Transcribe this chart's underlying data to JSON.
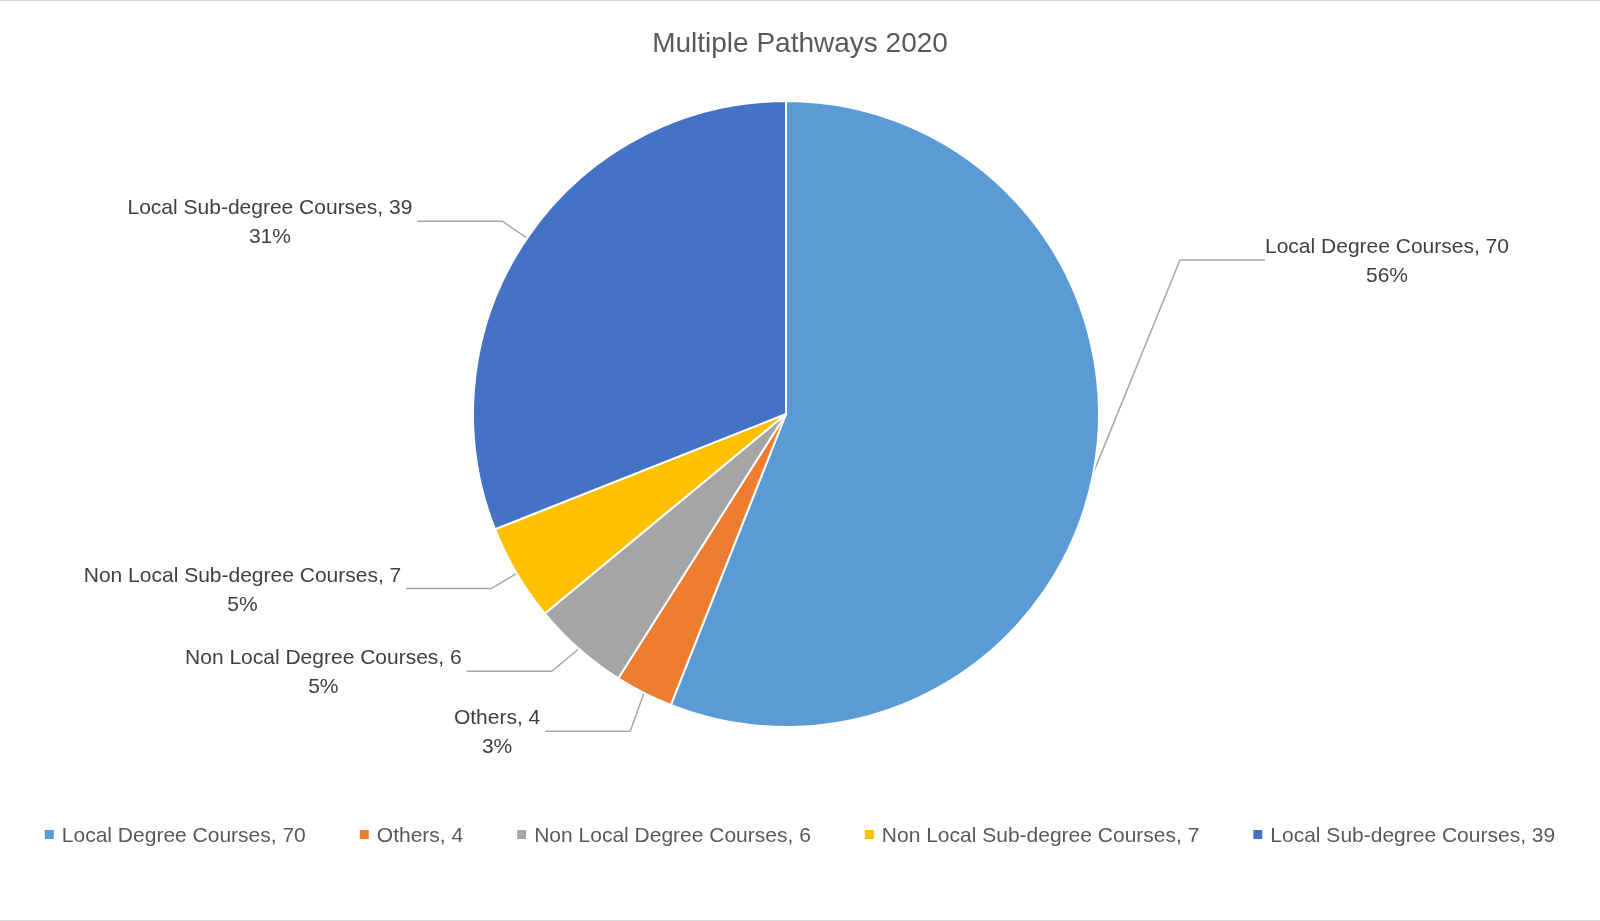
{
  "chart_data": {
    "type": "pie",
    "title": "Multiple Pathways 2020",
    "categories": [
      "Local Degree Courses, 70",
      "Others, 4",
      "Non Local Degree Courses, 6",
      "Non Local Sub-degree Courses, 7",
      "Local Sub-degree Courses, 39"
    ],
    "values": [
      56,
      3,
      5,
      5,
      31
    ],
    "colors": [
      "#5b9bd5",
      "#ed7d31",
      "#a5a5a5",
      "#ffc000",
      "#4472c4"
    ],
    "value_labels": [
      "56%",
      "3%",
      "5%",
      "5%",
      "31%"
    ],
    "legend": "bottom"
  }
}
